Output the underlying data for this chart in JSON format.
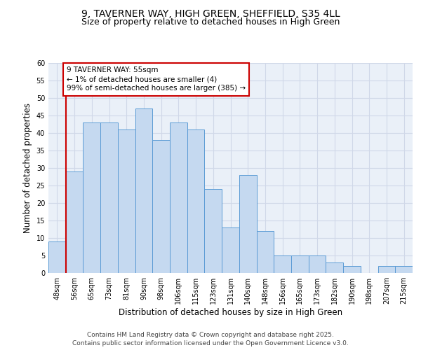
{
  "title_line1": "9, TAVERNER WAY, HIGH GREEN, SHEFFIELD, S35 4LL",
  "title_line2": "Size of property relative to detached houses in High Green",
  "xlabel": "Distribution of detached houses by size in High Green",
  "ylabel": "Number of detached properties",
  "categories": [
    "48sqm",
    "56sqm",
    "65sqm",
    "73sqm",
    "81sqm",
    "90sqm",
    "98sqm",
    "106sqm",
    "115sqm",
    "123sqm",
    "131sqm",
    "140sqm",
    "148sqm",
    "156sqm",
    "165sqm",
    "173sqm",
    "182sqm",
    "190sqm",
    "198sqm",
    "207sqm",
    "215sqm"
  ],
  "values": [
    9,
    29,
    43,
    43,
    41,
    47,
    38,
    43,
    41,
    24,
    13,
    28,
    12,
    5,
    5,
    5,
    3,
    2,
    0,
    2,
    2
  ],
  "bar_color": "#c5d9f0",
  "bar_edge_color": "#5b9bd5",
  "annotation_box_text": "9 TAVERNER WAY: 55sqm\n← 1% of detached houses are smaller (4)\n99% of semi-detached houses are larger (385) →",
  "annotation_box_color": "#ffffff",
  "annotation_box_edge_color": "#cc0000",
  "marker_line_color": "#cc0000",
  "ylim": [
    0,
    60
  ],
  "yticks": [
    0,
    5,
    10,
    15,
    20,
    25,
    30,
    35,
    40,
    45,
    50,
    55,
    60
  ],
  "grid_color": "#d0d8e8",
  "background_color": "#eaf0f8",
  "footer_text": "Contains HM Land Registry data © Crown copyright and database right 2025.\nContains public sector information licensed under the Open Government Licence v3.0.",
  "title_fontsize": 10,
  "subtitle_fontsize": 9,
  "axis_label_fontsize": 8.5,
  "tick_fontsize": 7,
  "annotation_fontsize": 7.5,
  "footer_fontsize": 6.5
}
